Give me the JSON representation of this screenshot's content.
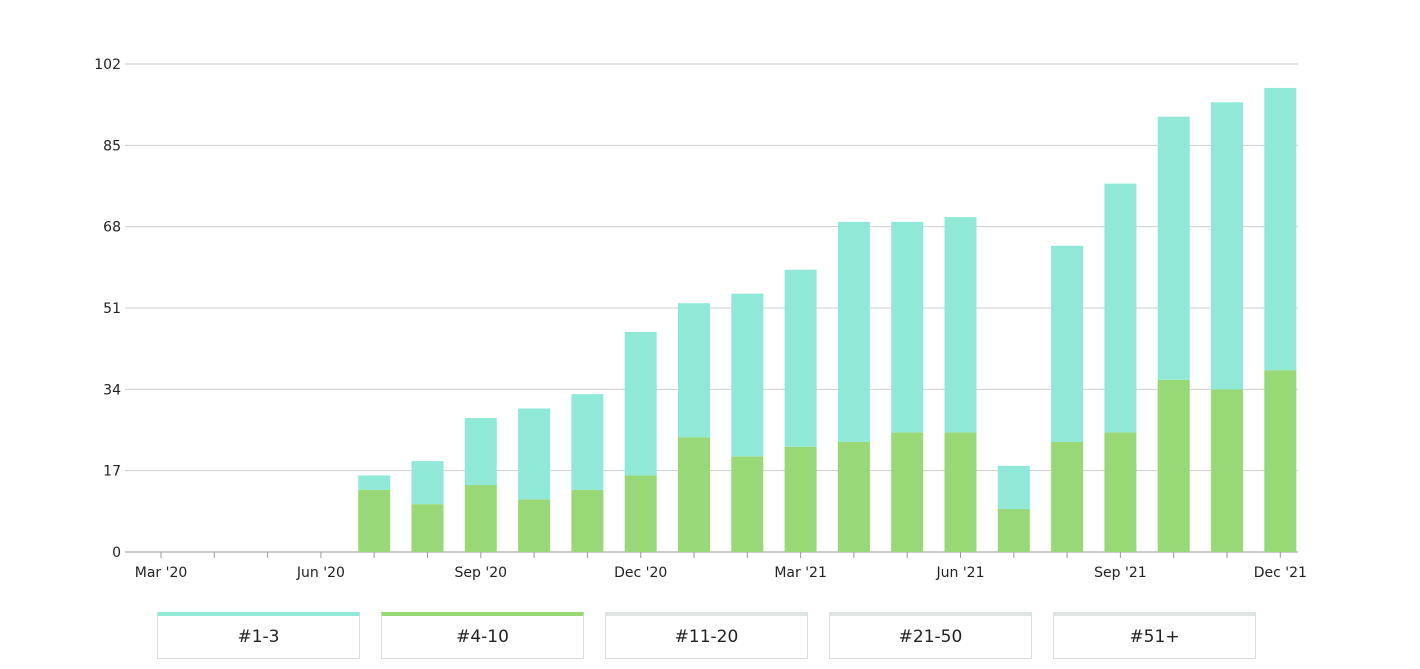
{
  "chart_data": {
    "type": "bar",
    "stacked": true,
    "categories": [
      "Mar '20",
      "Apr '20",
      "May '20",
      "Jun '20",
      "Jul '20",
      "Aug '20",
      "Sep '20",
      "Oct '20",
      "Nov '20",
      "Dec '20",
      "Jan '21",
      "Feb '21",
      "Mar '21",
      "Apr '21",
      "May '21",
      "Jun '21",
      "Jul '21",
      "Aug '21",
      "Sep '21",
      "Oct '21",
      "Nov '21",
      "Dec '21"
    ],
    "x_tick_labels": [
      "Mar '20",
      "Jun '20",
      "Sep '20",
      "Dec '20",
      "Mar '21",
      "Jun '21",
      "Sep '21",
      "Dec '21"
    ],
    "y_ticks": [
      0,
      17,
      34,
      51,
      68,
      85,
      102
    ],
    "ylim": [
      0,
      102
    ],
    "grid": true,
    "series": [
      {
        "name": "#4-10",
        "color": "#98d877",
        "values": [
          0,
          0,
          0,
          0,
          13,
          10,
          14,
          11,
          13,
          16,
          24,
          20,
          22,
          23,
          25,
          25,
          9,
          23,
          25,
          36,
          34,
          38
        ]
      },
      {
        "name": "#1-3",
        "color": "#90e9d7",
        "values": [
          0,
          0,
          0,
          0,
          3,
          9,
          14,
          19,
          20,
          30,
          28,
          34,
          37,
          46,
          44,
          45,
          9,
          41,
          52,
          55,
          60,
          59
        ]
      }
    ]
  },
  "legend": [
    {
      "label": "#1-3",
      "color": "#90e9d7",
      "active": true
    },
    {
      "label": "#4-10",
      "color": "#98d877",
      "active": true
    },
    {
      "label": "#11-20",
      "color": "#dfe6e4",
      "active": false
    },
    {
      "label": "#21-50",
      "color": "#dfe6e4",
      "active": false
    },
    {
      "label": "#51+",
      "color": "#dfe6e4",
      "active": false
    }
  ]
}
